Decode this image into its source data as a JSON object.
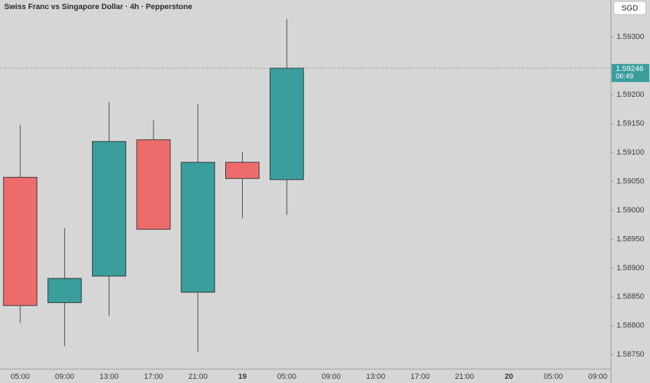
{
  "chart_data": {
    "type": "candlestick",
    "title": "Swiss Franc vs Singapore Dollar · 4h · Pepperstone",
    "currency": "SGD",
    "categories": [
      "05:00",
      "09:00",
      "13:00",
      "17:00",
      "21:00",
      "19",
      "05:00",
      "09:00",
      "13:00",
      "17:00",
      "21:00",
      "20",
      "05:00",
      "09:00"
    ],
    "open": [
      1.59057,
      1.5884,
      1.58886,
      1.59122,
      1.58858,
      1.59083,
      1.59053,
      null,
      null,
      null,
      null,
      null,
      null,
      null
    ],
    "high": [
      1.59148,
      1.58969,
      1.59187,
      1.59157,
      1.59184,
      1.59101,
      1.59331,
      null,
      null,
      null,
      null,
      null,
      null,
      null
    ],
    "low": [
      1.58805,
      1.58765,
      1.58817,
      1.58967,
      1.58755,
      1.58986,
      1.58992,
      null,
      null,
      null,
      null,
      null,
      null,
      null
    ],
    "close": [
      1.58835,
      1.58882,
      1.59119,
      1.58967,
      1.59083,
      1.59055,
      1.59246,
      null,
      null,
      null,
      null,
      null,
      null,
      null
    ],
    "up_color": "#3a9e9c",
    "down_color": "#ee6b6b",
    "last_price": 1.59246,
    "countdown": "06:49",
    "ylim": [
      1.58725,
      1.59364
    ],
    "yticks": [
      {
        "value": 1.5875,
        "label": "1.58750"
      },
      {
        "value": 1.588,
        "label": "1.58800"
      },
      {
        "value": 1.5885,
        "label": "1.58850"
      },
      {
        "value": 1.589,
        "label": "1.58900"
      },
      {
        "value": 1.5895,
        "label": "1.58950"
      },
      {
        "value": 1.59,
        "label": "1.59000"
      },
      {
        "value": 1.5905,
        "label": "1.59050"
      },
      {
        "value": 1.591,
        "label": "1.59100"
      },
      {
        "value": 1.5915,
        "label": "1.59150"
      },
      {
        "value": 1.592,
        "label": "1.59200"
      },
      {
        "value": 1.593,
        "label": "1.59300"
      }
    ]
  }
}
